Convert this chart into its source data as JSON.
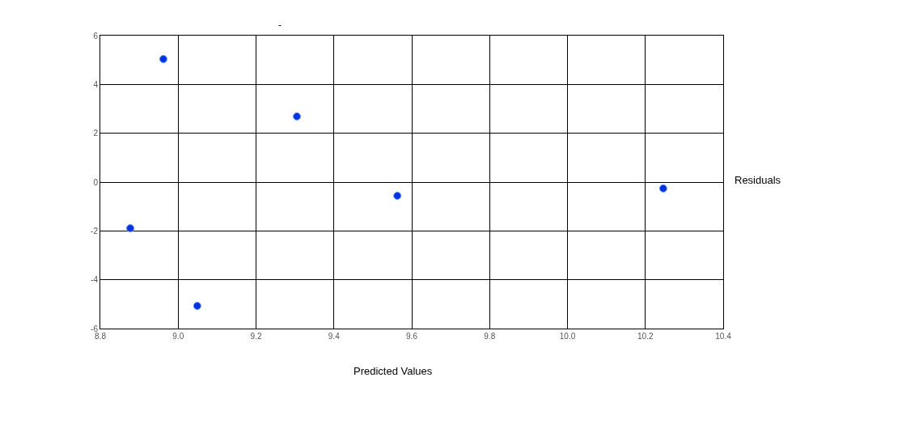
{
  "chart_data": {
    "type": "scatter",
    "title": "-",
    "xlabel": "Predicted Values",
    "ylabel": "Residuals",
    "x": [
      8.877,
      8.962,
      9.049,
      9.305,
      9.563,
      10.246
    ],
    "series": [
      {
        "color": "#0033dd",
        "values": [
          -1.89,
          5.04,
          -5.07,
          2.69,
          -0.56,
          -0.26
        ]
      }
    ],
    "xlim": [
      8.8,
      10.4
    ],
    "xticks": [
      {
        "value": 8.8,
        "label": "8.8"
      },
      {
        "value": 9.0,
        "label": "9.0"
      },
      {
        "value": 9.2,
        "label": "9.2"
      },
      {
        "value": 9.4,
        "label": "9.4"
      },
      {
        "value": 9.6,
        "label": "9.6"
      },
      {
        "value": 9.8,
        "label": "9.8"
      },
      {
        "value": 10.0,
        "label": "10.0"
      },
      {
        "value": 10.2,
        "label": "10.2"
      },
      {
        "value": 10.4,
        "label": "10.4"
      }
    ],
    "ylim": [
      -6,
      6
    ],
    "yticks": [
      -6,
      -4,
      -2,
      0,
      2,
      4,
      6
    ],
    "grid": true,
    "marker": "circle"
  }
}
